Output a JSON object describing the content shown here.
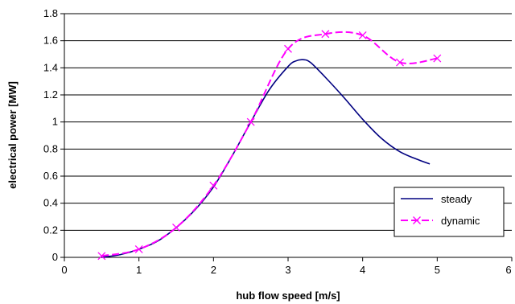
{
  "chart_data": {
    "type": "line",
    "title": "",
    "xlabel": "hub flow speed [m/s]",
    "ylabel": "electrical power [MW]",
    "xlim": [
      0,
      6
    ],
    "ylim": [
      0,
      1.8
    ],
    "xticks": [
      0,
      1,
      2,
      3,
      4,
      5,
      6
    ],
    "yticks": [
      0,
      0.2,
      0.4,
      0.6,
      0.8,
      1,
      1.2,
      1.4,
      1.6,
      1.8
    ],
    "grid": "horizontal",
    "legend_position": "bottom-right",
    "series": [
      {
        "name": "steady",
        "color": "#000080",
        "style": "solid",
        "marker": "none",
        "x": [
          0.5,
          0.75,
          1.0,
          1.25,
          1.5,
          1.75,
          2.0,
          2.25,
          2.5,
          2.75,
          3.0,
          3.1,
          3.2,
          3.3,
          3.5,
          3.75,
          4.0,
          4.25,
          4.5,
          4.75,
          4.9
        ],
        "y": [
          0.0,
          0.02,
          0.06,
          0.12,
          0.22,
          0.35,
          0.52,
          0.75,
          1.0,
          1.24,
          1.41,
          1.45,
          1.46,
          1.44,
          1.33,
          1.18,
          1.02,
          0.88,
          0.78,
          0.72,
          0.69
        ]
      },
      {
        "name": "dynamic",
        "color": "#FF00FF",
        "style": "dashed",
        "marker": "x",
        "x": [
          0.5,
          1.0,
          1.5,
          2.0,
          2.5,
          3.0,
          3.5,
          4.0,
          4.5,
          5.0
        ],
        "y": [
          0.01,
          0.06,
          0.22,
          0.53,
          1.0,
          1.54,
          1.65,
          1.64,
          1.44,
          1.47
        ]
      }
    ]
  }
}
